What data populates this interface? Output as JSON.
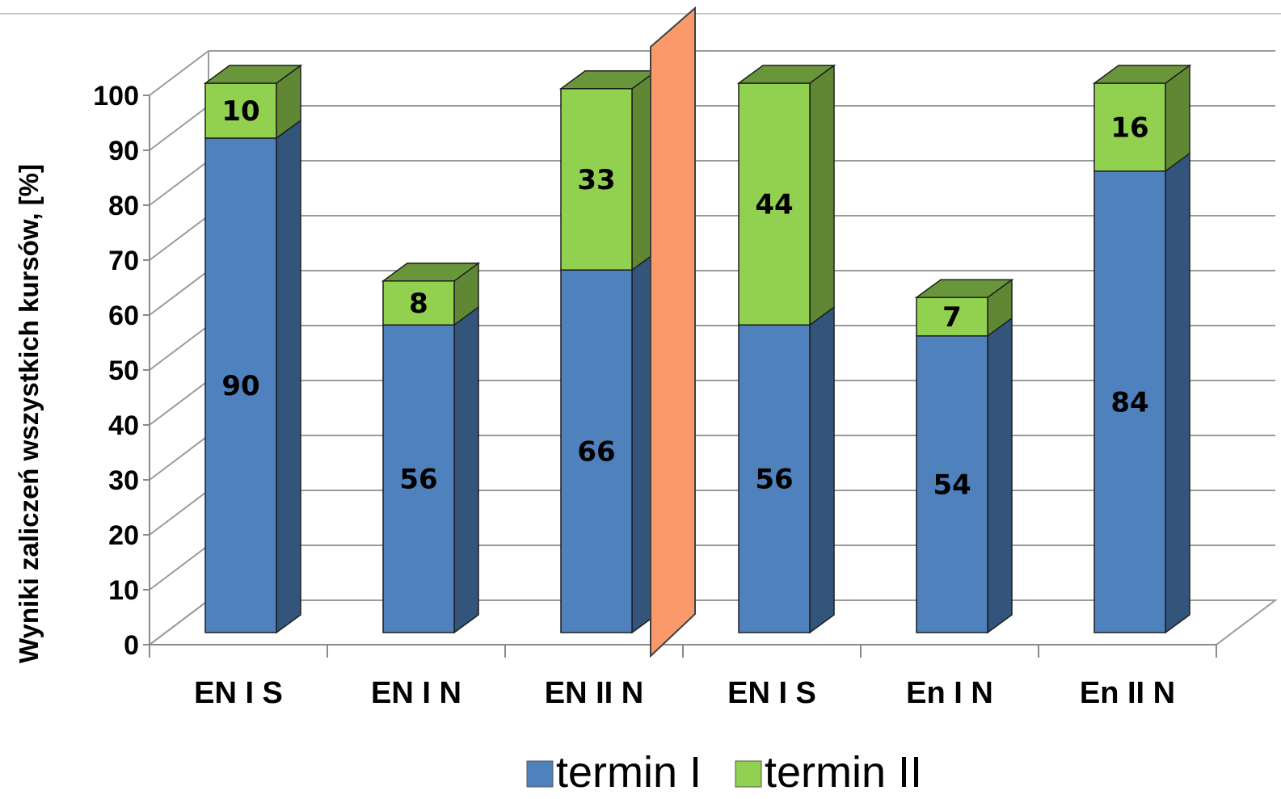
{
  "chart_data": {
    "type": "bar",
    "stacked": true,
    "three_d": true,
    "title": "",
    "xlabel": "",
    "ylabel": "Wyniki zaliczeń wszystkich kursów, [%]",
    "ylim": [
      0,
      100
    ],
    "ytick_step": 10,
    "grid": true,
    "legend_position": "bottom",
    "categories": [
      "EN I S",
      "EN I N",
      "EN II N",
      "EN I S",
      "En I N",
      "En II N"
    ],
    "series": [
      {
        "name": "termin I",
        "color": "#4f81bd",
        "values": [
          90,
          56,
          66,
          56,
          54,
          84
        ]
      },
      {
        "name": "termin II",
        "color": "#92d050",
        "values": [
          10,
          8,
          33,
          44,
          7,
          16
        ]
      }
    ],
    "separator_color": "#fa9a6a"
  }
}
